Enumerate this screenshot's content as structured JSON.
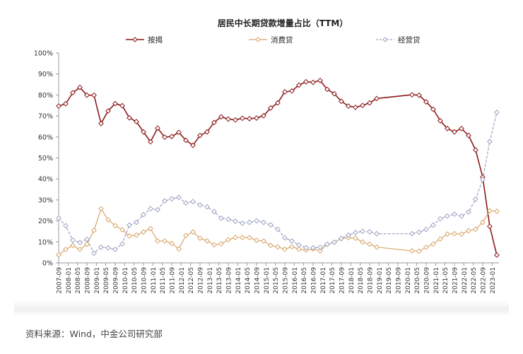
{
  "chart_data": {
    "type": "line",
    "title": "居民中长期贷款增量占比（TTM）",
    "xlabel": "",
    "ylabel": "",
    "ylim": [
      0,
      100
    ],
    "y_ticks": [
      "0%",
      "10%",
      "20%",
      "30%",
      "40%",
      "50%",
      "60%",
      "70%",
      "80%",
      "90%",
      "100%"
    ],
    "x_ticks": [
      "2007-09",
      "2008-01",
      "2008-05",
      "2008-09",
      "2009-01",
      "2009-05",
      "2009-09",
      "2010-01",
      "2010-05",
      "2010-09",
      "2011-01",
      "2011-05",
      "2011-09",
      "2012-01",
      "2012-05",
      "2012-09",
      "2013-01",
      "2013-05",
      "2013-09",
      "2014-01",
      "2014-05",
      "2014-09",
      "2015-01",
      "2015-05",
      "2015-09",
      "2016-01",
      "2016-05",
      "2016-09",
      "2017-01",
      "2017-05",
      "2017-09",
      "2018-01",
      "2018-05",
      "2018-09",
      "2019-01",
      "2019-05",
      "2019-09",
      "2020-01",
      "2020-05",
      "2020-09",
      "2021-01",
      "2021-05",
      "2021-09",
      "2022-01",
      "2022-05",
      "2022-09",
      "2023-01"
    ],
    "legend_position": "top",
    "grid": false,
    "x": [
      "2007-09",
      "2007-12",
      "2008-03",
      "2008-06",
      "2008-09",
      "2008-12",
      "2009-03",
      "2009-06",
      "2009-09",
      "2009-12",
      "2010-03",
      "2010-06",
      "2010-09",
      "2010-12",
      "2011-03",
      "2011-06",
      "2011-09",
      "2011-12",
      "2012-03",
      "2012-06",
      "2012-09",
      "2012-12",
      "2013-03",
      "2013-06",
      "2013-09",
      "2013-12",
      "2014-03",
      "2014-06",
      "2014-09",
      "2014-12",
      "2015-03",
      "2015-06",
      "2015-09",
      "2015-12",
      "2016-03",
      "2016-06",
      "2016-09",
      "2016-12",
      "2017-03",
      "2017-06",
      "2017-09",
      "2017-12",
      "2018-03",
      "2018-06",
      "2018-09",
      "2018-12",
      "2020-03",
      "2020-06",
      "2020-09",
      "2020-12",
      "2021-03",
      "2021-06",
      "2021-09",
      "2021-12",
      "2022-03",
      "2022-06",
      "2022-09",
      "2022-12",
      "2023-03"
    ],
    "series": [
      {
        "name": "按揭",
        "color": "#8b1a1a",
        "dash": false,
        "values": [
          74.7,
          75.8,
          81.1,
          83.6,
          79.9,
          79.9,
          66.4,
          72.4,
          75.9,
          74.9,
          69.1,
          67.3,
          62.4,
          57.7,
          64.2,
          59.9,
          60.2,
          62.2,
          58.4,
          56.0,
          60.7,
          62.4,
          66.9,
          69.6,
          68.5,
          68.1,
          68.9,
          68.7,
          69.0,
          70.1,
          73.8,
          76.2,
          81.5,
          81.9,
          84.7,
          86.3,
          86.0,
          86.9,
          82.7,
          80.6,
          77.0,
          74.7,
          74.1,
          75.0,
          76.2,
          78.3,
          80.1,
          79.9,
          76.7,
          73.2,
          67.7,
          64.0,
          62.4,
          64.0,
          60.7,
          53.8,
          40.9,
          17.4,
          3.7
        ]
      },
      {
        "name": "消费贷",
        "color": "#d9a66a",
        "dash": false,
        "values": [
          3.8,
          6.4,
          8.3,
          6.4,
          8.9,
          15.5,
          25.8,
          20.5,
          17.7,
          15.8,
          12.8,
          13.2,
          14.7,
          16.3,
          10.4,
          10.4,
          9.3,
          6.6,
          13.0,
          14.7,
          11.7,
          10.5,
          8.6,
          9.1,
          11.0,
          12.1,
          12.1,
          12.0,
          10.7,
          10.4,
          8.3,
          7.6,
          6.5,
          7.7,
          6.5,
          6.1,
          6.6,
          5.7,
          8.8,
          9.8,
          11.6,
          12.0,
          11.7,
          9.9,
          8.9,
          7.5,
          5.7,
          5.6,
          7.4,
          9.0,
          11.4,
          13.7,
          13.9,
          13.7,
          15.3,
          16.0,
          19.3,
          24.8,
          24.6
        ]
      },
      {
        "name": "经营贷",
        "color": "#9ea3c4",
        "dash": true,
        "values": [
          21.3,
          17.7,
          10.8,
          9.7,
          11.2,
          4.6,
          7.5,
          7.1,
          6.4,
          9.1,
          18.0,
          19.3,
          23.0,
          25.8,
          25.3,
          29.5,
          30.5,
          31.2,
          28.5,
          29.2,
          27.6,
          26.7,
          24.4,
          21.3,
          20.8,
          19.8,
          18.9,
          19.3,
          20.0,
          19.3,
          18.1,
          16.0,
          11.9,
          10.4,
          8.5,
          7.2,
          7.2,
          7.4,
          8.9,
          9.8,
          11.6,
          13.2,
          14.4,
          15.0,
          14.8,
          13.9,
          13.9,
          14.6,
          15.9,
          18.0,
          21.0,
          22.3,
          23.2,
          22.3,
          24.2,
          30.3,
          39.7,
          57.8,
          71.7
        ]
      }
    ]
  },
  "source": "资料来源：Wind，中金公司研究部"
}
